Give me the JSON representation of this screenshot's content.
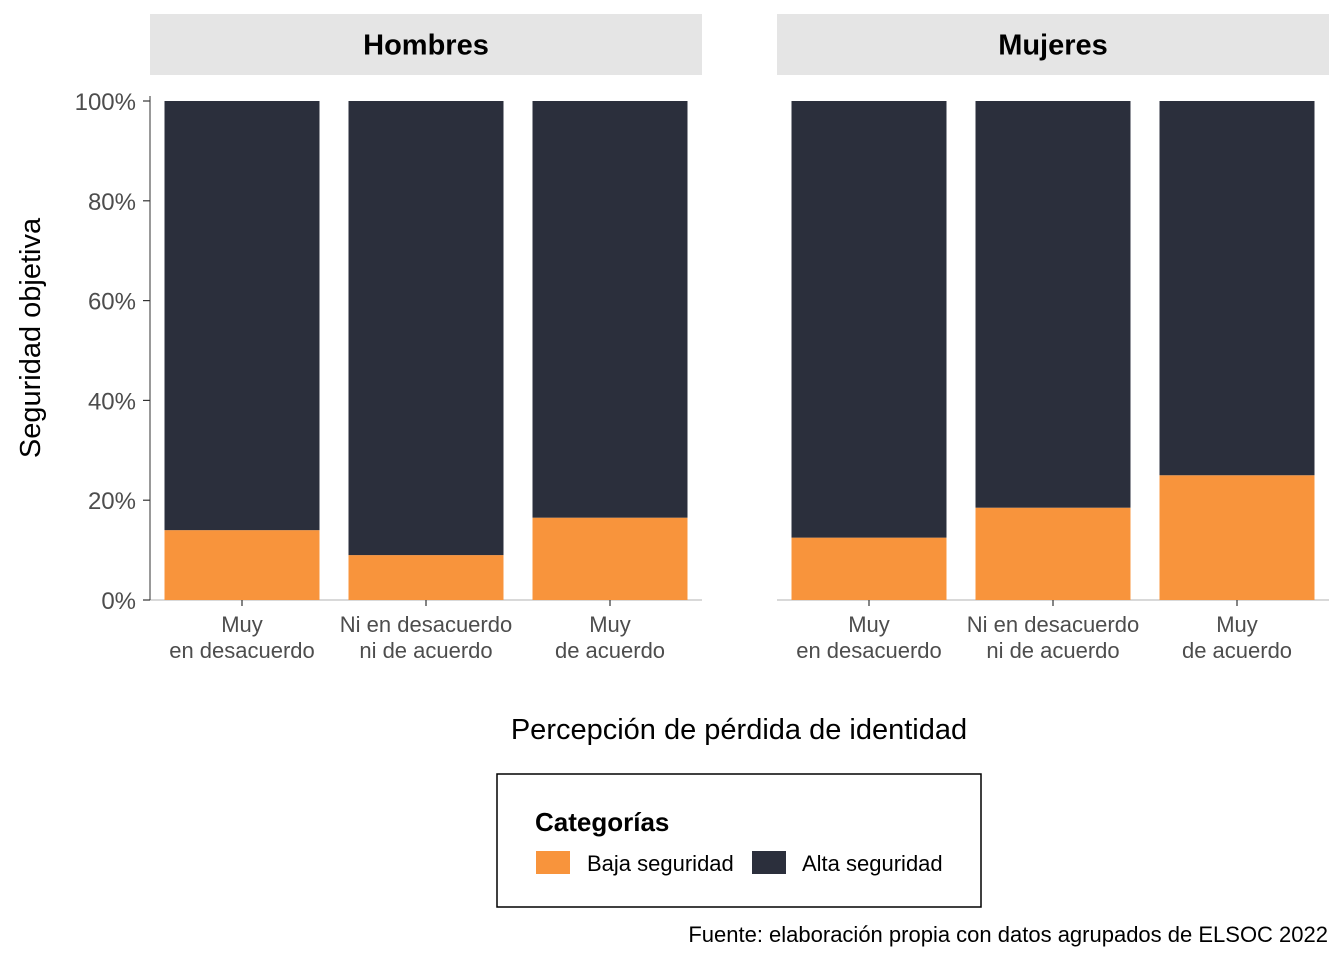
{
  "chart_data": {
    "type": "bar",
    "stacked": true,
    "percent": true,
    "categories": [
      "Muy\nen desacuerdo",
      "Ni en desacuerdo\nni de acuerdo",
      "Muy\nde acuerdo"
    ],
    "facets": [
      {
        "name": "Hombres",
        "series": [
          {
            "name": "Baja seguridad",
            "values": [
              14,
              9,
              16.5
            ]
          },
          {
            "name": "Alta seguridad",
            "values": [
              86,
              91,
              83.5
            ]
          }
        ]
      },
      {
        "name": "Mujeres",
        "series": [
          {
            "name": "Baja seguridad",
            "values": [
              12.5,
              18.5,
              25
            ]
          },
          {
            "name": "Alta seguridad",
            "values": [
              87.5,
              81.5,
              75
            ]
          }
        ]
      }
    ],
    "colors": {
      "Baja seguridad": "#f8943c",
      "Alta seguridad": "#2b2f3c"
    },
    "ylim": [
      0,
      100
    ],
    "yticks": [
      "0%",
      "20%",
      "40%",
      "60%",
      "80%",
      "100%"
    ],
    "xlabel": "Percepción de pérdida de identidad",
    "ylabel": "Seguridad objetiva",
    "legend": {
      "title": "Categorías",
      "position": "bottom",
      "entries": [
        "Baja seguridad",
        "Alta seguridad"
      ]
    },
    "caption": "Fuente: elaboración propia con datos agrupados de ELSOC 2022",
    "grid": false
  }
}
